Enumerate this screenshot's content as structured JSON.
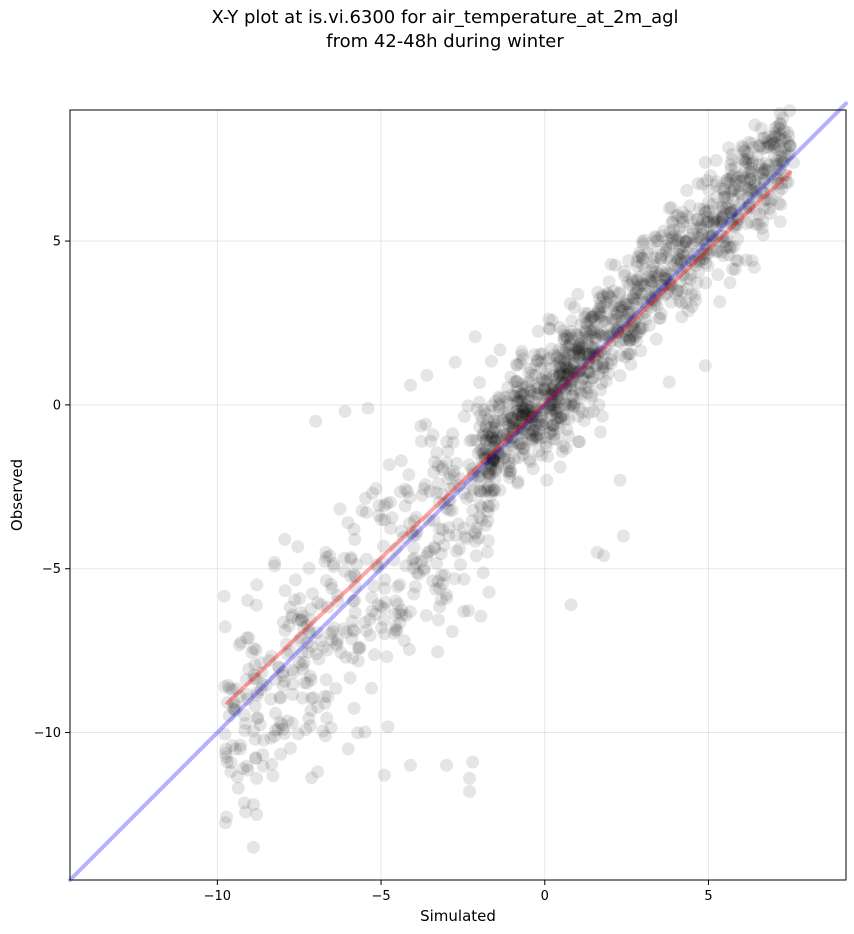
{
  "chart_data": {
    "type": "scatter",
    "title_line1": "X-Y plot at is.vi.6300 for air_temperature_at_2m_agl",
    "title_line2": "from 42-48h during winter",
    "xlabel": "Simulated",
    "ylabel": "Observed",
    "xlim": [
      -14.5,
      9.2
    ],
    "ylim": [
      -14.5,
      9.0
    ],
    "x_ticks": [
      -10,
      -5,
      0,
      5
    ],
    "y_ticks": [
      -10,
      -5,
      0,
      5
    ],
    "x_tick_labels": [
      "−10",
      "−5",
      "0",
      "5"
    ],
    "y_tick_labels": [
      "−10",
      "−5",
      "0",
      "5"
    ],
    "grid": true,
    "series": [
      {
        "kind": "points",
        "color": "#000000",
        "opacity": 0.1,
        "clusters": [
          {
            "x_range": [
              -9.8,
              -1.5
            ],
            "trend": [
              1.0,
              -0.4
            ],
            "spread": 1.6,
            "count": 450
          },
          {
            "x_range": [
              -2.0,
              1.5
            ],
            "trend": [
              1.0,
              0.2
            ],
            "spread": 0.9,
            "count": 550
          },
          {
            "x_range": [
              1.5,
              7.5
            ],
            "trend": [
              1.0,
              0.3
            ],
            "spread": 0.85,
            "count": 620
          }
        ],
        "points": [
          [
            -8.9,
            -13.5
          ],
          [
            -8.8,
            -12.5
          ],
          [
            -8.9,
            -12.2
          ],
          [
            -8.8,
            -11.4
          ],
          [
            -2.3,
            -11.8
          ],
          [
            -2.3,
            -11.4
          ],
          [
            -2.2,
            -10.9
          ],
          [
            -3.0,
            -11.0
          ],
          [
            -4.1,
            -11.0
          ],
          [
            -4.9,
            -11.3
          ],
          [
            -9.7,
            -10.9
          ],
          [
            -9.3,
            -10.5
          ],
          [
            -6.0,
            -10.5
          ],
          [
            -6.7,
            -10.1
          ],
          [
            -7.0,
            -0.5
          ],
          [
            -5.4,
            -0.1
          ],
          [
            -6.1,
            -0.2
          ],
          [
            -3.6,
            0.9
          ],
          [
            -4.1,
            0.6
          ],
          [
            1.6,
            -4.5
          ],
          [
            1.8,
            -4.6
          ],
          [
            2.4,
            -4.0
          ],
          [
            0.8,
            -6.1
          ],
          [
            2.3,
            -2.3
          ],
          [
            3.8,
            0.7
          ],
          [
            4.9,
            1.2
          ],
          [
            6.4,
            4.2
          ],
          [
            7.5,
            7.9
          ],
          [
            7.6,
            7.4
          ],
          [
            4.9,
            7.4
          ],
          [
            6.1,
            7.5
          ]
        ]
      },
      {
        "kind": "line",
        "name": "",
        "color": "#0000ff",
        "opacity": 0.3,
        "x": [
          -14.5,
          9.2
        ],
        "y": [
          -14.5,
          9.2
        ]
      },
      {
        "kind": "line",
        "name": "",
        "color": "#ff0000",
        "opacity": 0.35,
        "x": [
          -9.7,
          7.5
        ],
        "y": [
          -9.1,
          7.1
        ]
      }
    ]
  }
}
